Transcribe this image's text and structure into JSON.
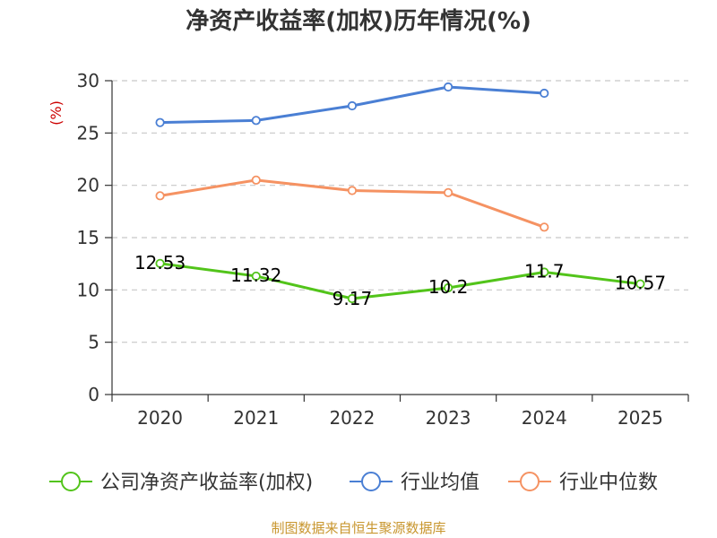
{
  "chart_data": {
    "type": "line",
    "title": "净资产收益率(加权)历年情况(%)",
    "ylabel": "(%)",
    "xlabel": "",
    "ylim": [
      0,
      30
    ],
    "yticks": [
      0,
      5,
      10,
      15,
      20,
      25,
      30
    ],
    "grid": true,
    "legend_position": "bottom",
    "categories": [
      "2020",
      "2021",
      "2022",
      "2023",
      "2024",
      "2025"
    ],
    "series": [
      {
        "name": "公司净资产收益率(加权)",
        "color": "#52c41a",
        "values": [
          12.53,
          11.32,
          9.17,
          10.2,
          11.7,
          10.57
        ],
        "labels": [
          "12.53",
          "11.32",
          "9.17",
          "10.2",
          "11.7",
          "10.57"
        ]
      },
      {
        "name": "行业均值",
        "color": "#4a7fd4",
        "values": [
          26.0,
          26.2,
          27.6,
          29.4,
          28.8,
          null
        ]
      },
      {
        "name": "行业中位数",
        "color": "#f59262",
        "values": [
          19.0,
          20.5,
          19.5,
          19.3,
          16.0,
          null
        ]
      }
    ],
    "source": "制图数据来自恒生聚源数据库"
  }
}
